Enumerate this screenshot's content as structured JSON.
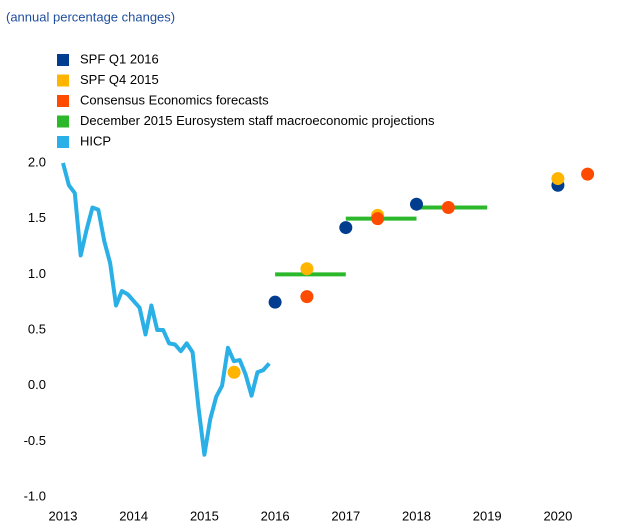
{
  "chart_data": {
    "type": "mixed",
    "subtitle": "(annual percentage changes)",
    "xlim": [
      2013,
      2020.85
    ],
    "xticks": [
      2013,
      2014,
      2015,
      2016,
      2017,
      2018,
      2019,
      2020
    ],
    "ylim": [
      -1,
      2
    ],
    "yticks": [
      {
        "value": -1,
        "label": "-1.0"
      },
      {
        "value": -0.5,
        "label": "-0.5"
      },
      {
        "value": 0,
        "label": "0.0"
      },
      {
        "value": 0.5,
        "label": "0.5"
      },
      {
        "value": 1,
        "label": "1.0"
      },
      {
        "value": 1.5,
        "label": "1.5"
      },
      {
        "value": 2,
        "label": "2.0"
      }
    ],
    "grid": false,
    "legend": "top-left",
    "series": [
      {
        "name": "SPF Q1 2016",
        "color": "#003d8f",
        "style": "dots",
        "x": [
          2016.0,
          2017.0,
          2018.0,
          2020.0
        ],
        "values": [
          0.75,
          1.42,
          1.63,
          1.8
        ]
      },
      {
        "name": "SPF Q4 2015",
        "color": "#ffb400",
        "style": "dots",
        "x": [
          2015.42,
          2016.45,
          2017.45,
          2020.0
        ],
        "values": [
          0.12,
          1.05,
          1.53,
          1.86
        ]
      },
      {
        "name": "Consensus Economics forecasts",
        "color": "#ff4b00",
        "style": "dots",
        "x": [
          2016.45,
          2017.45,
          2018.45,
          2020.42
        ],
        "values": [
          0.8,
          1.5,
          1.6,
          1.9
        ]
      },
      {
        "name": "December 2015 Eurosystem staff macroeconomic projections",
        "color": "#2bb82b",
        "style": "segments",
        "x_start": [
          2016,
          2017,
          2018
        ],
        "x_end": [
          2017,
          2018,
          2019
        ],
        "values": [
          1.0,
          1.5,
          1.6
        ]
      },
      {
        "name": "HICP",
        "color": "#2ab0e6",
        "style": "line",
        "x": [
          2013.0,
          2013.083,
          2013.167,
          2013.25,
          2013.333,
          2013.417,
          2013.5,
          2013.583,
          2013.667,
          2013.75,
          2013.833,
          2013.917,
          2014.0,
          2014.083,
          2014.167,
          2014.25,
          2014.333,
          2014.417,
          2014.5,
          2014.583,
          2014.667,
          2014.75,
          2014.833,
          2014.917,
          2015.0,
          2015.083,
          2015.167,
          2015.25,
          2015.333,
          2015.417,
          2015.5,
          2015.583,
          2015.667,
          2015.75,
          2015.833,
          2015.917
        ],
        "values": [
          2.0,
          1.8,
          1.73,
          1.17,
          1.4,
          1.6,
          1.58,
          1.3,
          1.1,
          0.72,
          0.85,
          0.82,
          0.76,
          0.7,
          0.46,
          0.72,
          0.5,
          0.5,
          0.38,
          0.37,
          0.31,
          0.38,
          0.3,
          -0.2,
          -0.62,
          -0.3,
          -0.1,
          0.0,
          0.34,
          0.22,
          0.23,
          0.1,
          -0.09,
          0.12,
          0.14,
          0.2
        ]
      }
    ]
  }
}
